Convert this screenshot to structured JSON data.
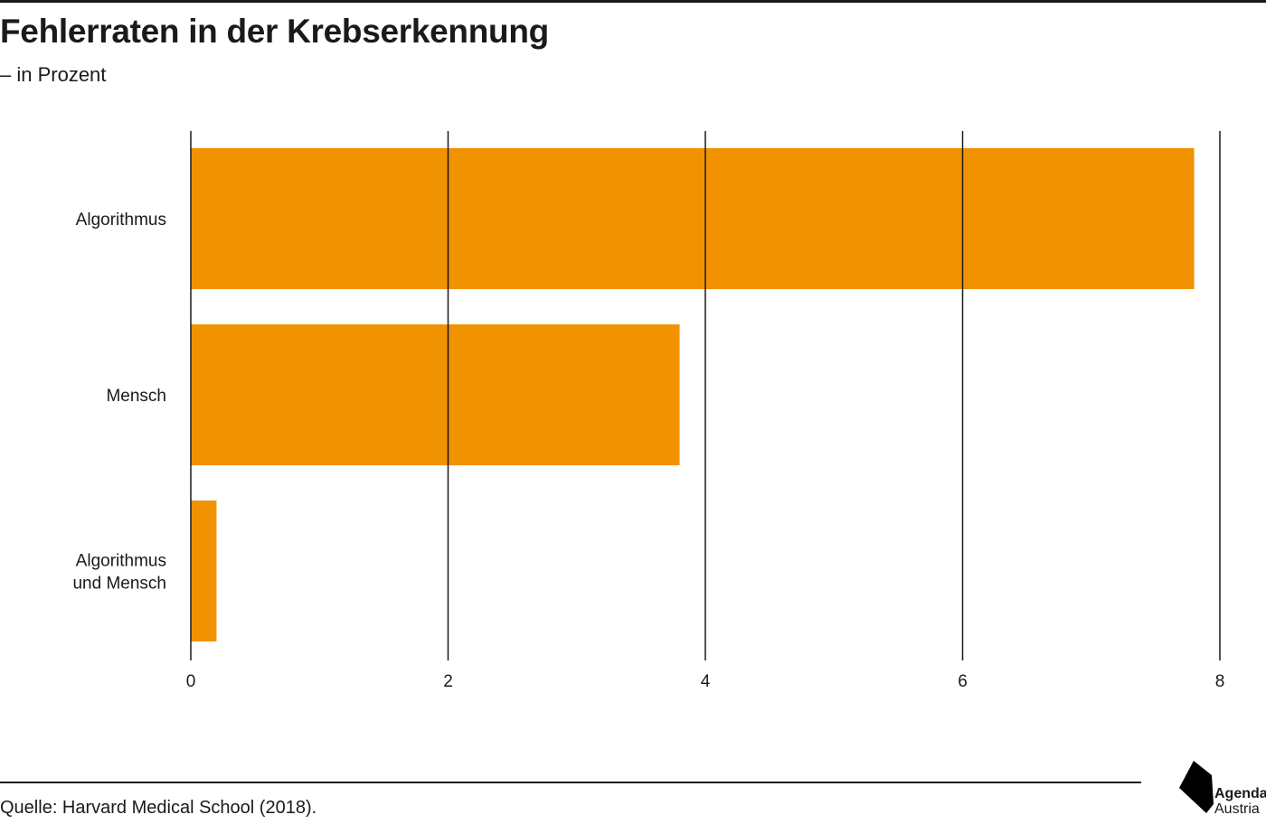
{
  "header": {
    "title": "Fehlerraten in der Krebserkennung",
    "subtitle": "– in Prozent"
  },
  "footer": {
    "source": "Quelle: Harvard Medical School (2018).",
    "logo_line1": "Agenda",
    "logo_line2": "Austria"
  },
  "colors": {
    "bar": "#f19200",
    "grid": "#1a1a1a",
    "text": "#1a1a1a"
  },
  "chart_data": {
    "type": "bar",
    "orientation": "horizontal",
    "title": "Fehlerraten in der Krebserkennung",
    "subtitle": "– in Prozent",
    "xlabel": "",
    "ylabel": "",
    "categories": [
      [
        "Algorithmus"
      ],
      [
        "Mensch"
      ],
      [
        "Algorithmus",
        "und Mensch"
      ]
    ],
    "values": [
      7.8,
      3.8,
      0.2
    ],
    "xlim": [
      0,
      8
    ],
    "ticks": [
      0,
      2,
      4,
      6,
      8
    ],
    "grid": true,
    "legend": "none"
  }
}
